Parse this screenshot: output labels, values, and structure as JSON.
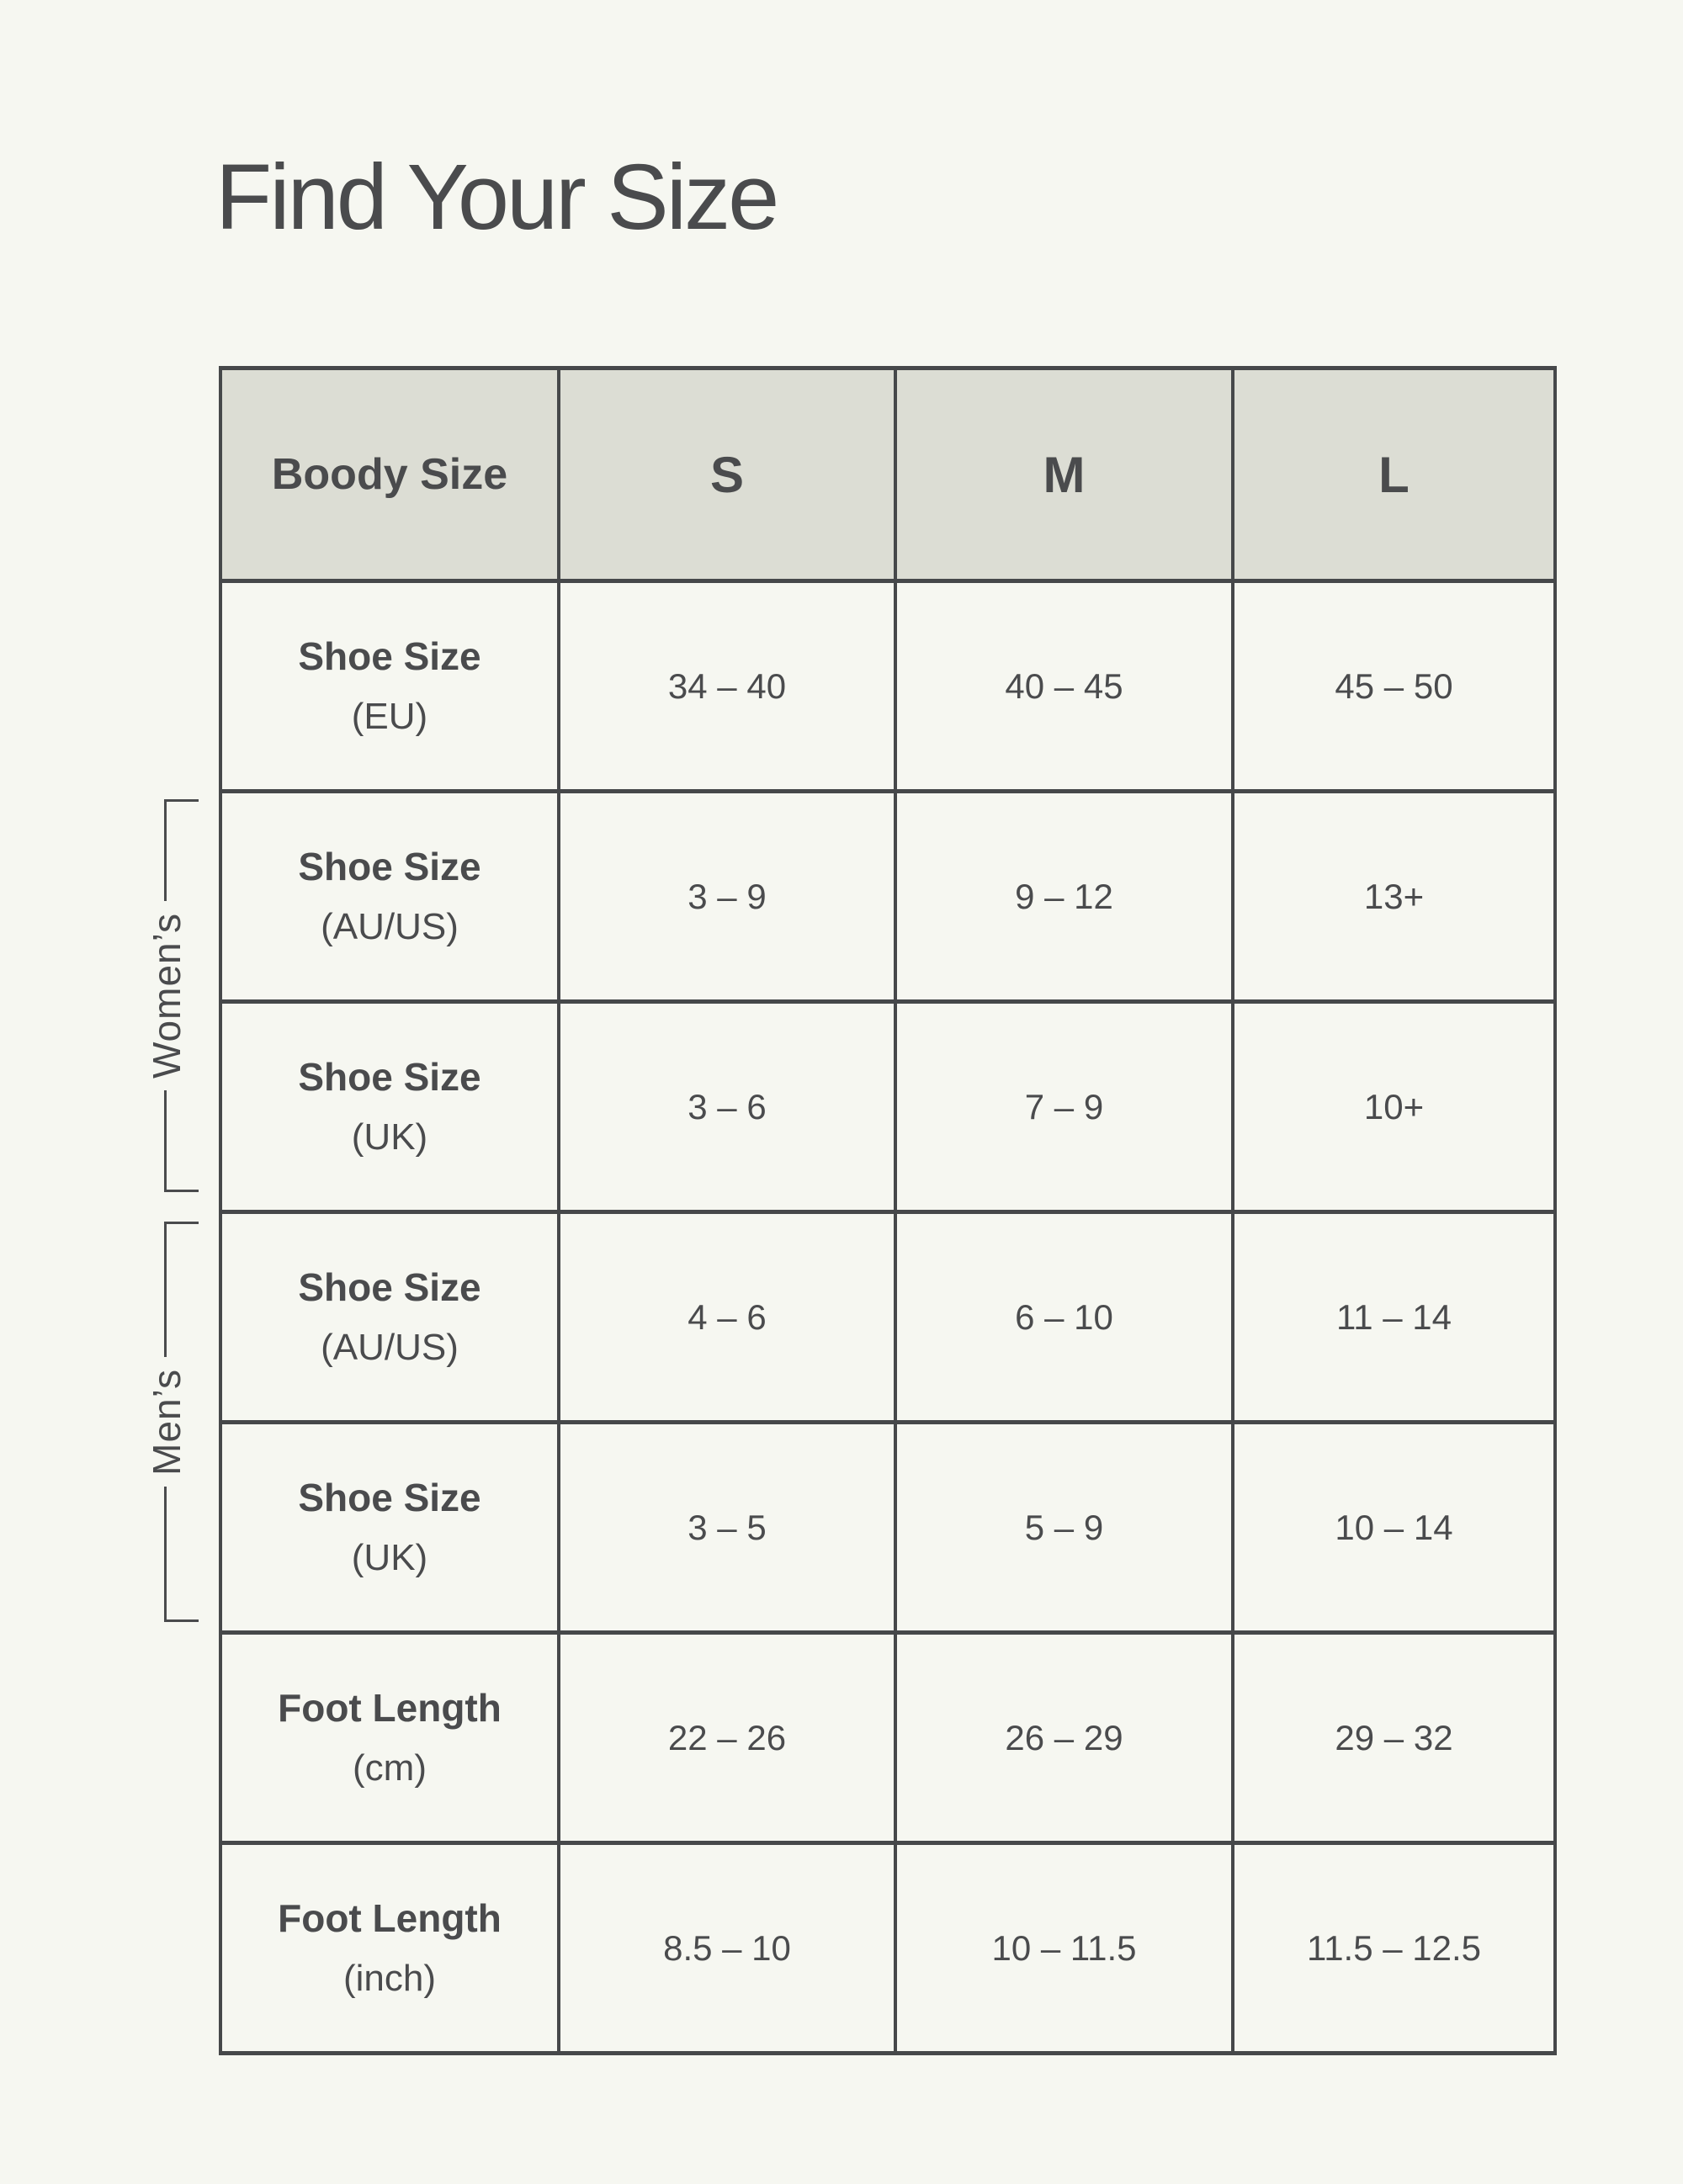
{
  "page": {
    "title": "Find Your Size"
  },
  "colors": {
    "background": "#f6f7f1",
    "header_cell": "#dcddd4",
    "border": "#46484a",
    "text": "#4a4b4d"
  },
  "brackets": {
    "womens": "Women’s",
    "mens": "Men’s"
  },
  "table": {
    "header": {
      "label": "Boody Size",
      "sizes": [
        "S",
        "M",
        "L"
      ]
    },
    "rows": [
      {
        "label": "Shoe Size",
        "unit": "(EU)",
        "values": [
          "34 – 40",
          "40 – 45",
          "45 – 50"
        ]
      },
      {
        "label": "Shoe Size",
        "unit": "(AU/US)",
        "values": [
          "3 – 9",
          "9 – 12",
          "13+"
        ]
      },
      {
        "label": "Shoe Size",
        "unit": "(UK)",
        "values": [
          "3 – 6",
          "7 – 9",
          "10+"
        ]
      },
      {
        "label": "Shoe Size",
        "unit": "(AU/US)",
        "values": [
          "4 – 6",
          "6 – 10",
          "11 – 14"
        ]
      },
      {
        "label": "Shoe Size",
        "unit": "(UK)",
        "values": [
          "3 – 5",
          "5 – 9",
          "10 – 14"
        ]
      },
      {
        "label": "Foot Length",
        "unit": "(cm)",
        "values": [
          "22 – 26",
          "26 – 29",
          "29 – 32"
        ]
      },
      {
        "label": "Foot Length",
        "unit": "(inch)",
        "values": [
          "8.5 – 10",
          "10 – 11.5",
          "11.5 – 12.5"
        ]
      }
    ]
  }
}
